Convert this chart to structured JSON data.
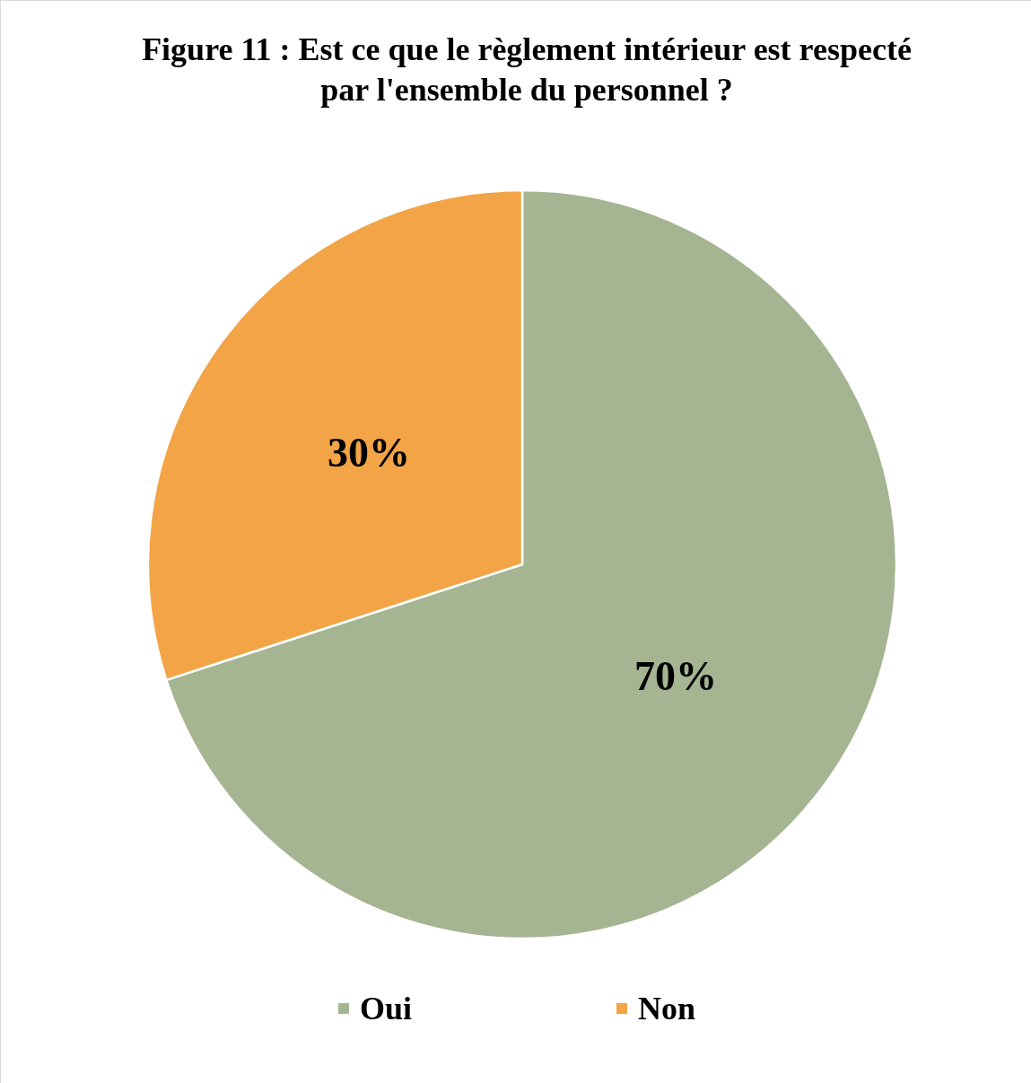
{
  "chart_data": {
    "type": "pie",
    "title": "Figure 11 : Est ce que le règlement intérieur est respecté par l'ensemble du personnel ?",
    "categories": [
      "Oui",
      "Non"
    ],
    "values": [
      70,
      30
    ],
    "colors": [
      "#a5b592",
      "#f2a446"
    ],
    "value_labels": [
      "70%",
      "30%"
    ],
    "legend": "bottom"
  }
}
